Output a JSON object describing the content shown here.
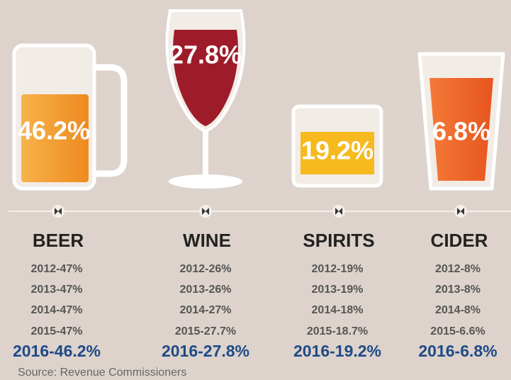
{
  "items": [
    {
      "name": "BEER",
      "share": "46.2%",
      "history": [
        "2012-47%",
        "2013-47%",
        "2014-47%",
        "2015-47%"
      ],
      "current": "2016-46.2%"
    },
    {
      "name": "WINE",
      "share": "27.8%",
      "history": [
        "2012-26%",
        "2013-26%",
        "2014-27%",
        "2015-27.7%"
      ],
      "current": "2016-27.8%"
    },
    {
      "name": "SPIRITS",
      "share": "19.2%",
      "history": [
        "2012-19%",
        "2013-19%",
        "2014-18%",
        "2015-18.7%"
      ],
      "current": "2016-19.2%"
    },
    {
      "name": "CIDER",
      "share": "6.8%",
      "history": [
        "2012-8%",
        "2013-8%",
        "2014-8%",
        "2015-6.6%"
      ],
      "current": "2016-6.8%"
    }
  ],
  "source": "Source: Revenue Commissioners"
}
